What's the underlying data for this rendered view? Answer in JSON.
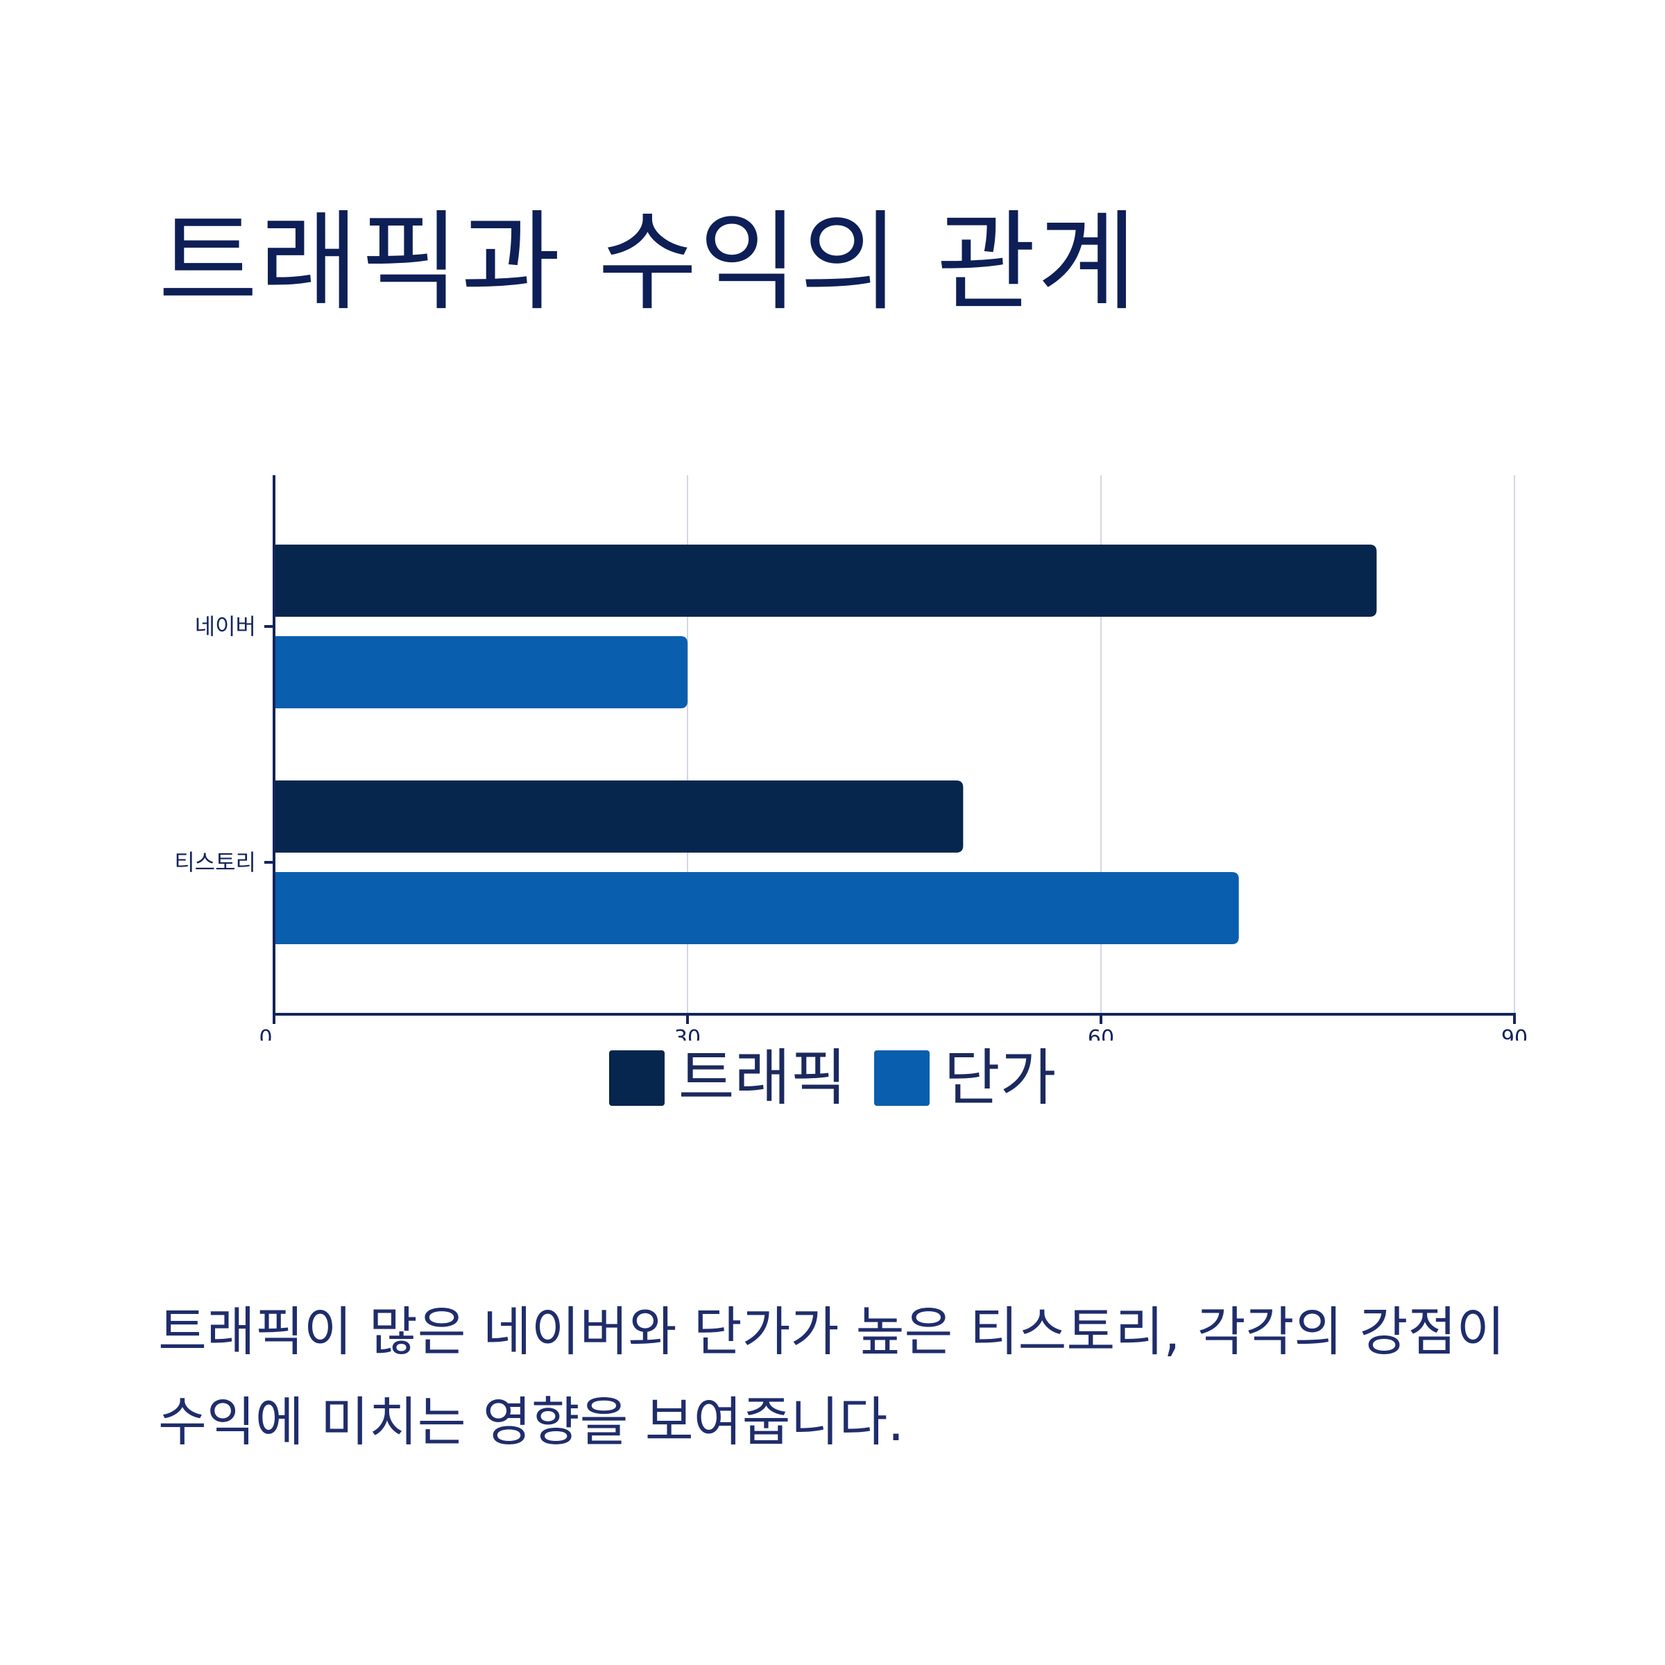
{
  "title": "트래픽과 수익의 관계",
  "caption": "트래픽이 많은 네이버와 단가가 높은 티스토리, 각각의 강점이 수익에 미치는 영향을 보여줍니다.",
  "colors": {
    "title": "#0d1f56",
    "axis": "#14245c",
    "grid": "#d3d6e6",
    "traffic": "#06264d",
    "price": "#0a5eae"
  },
  "chart_data": {
    "type": "bar",
    "orientation": "horizontal",
    "categories": [
      "네이버",
      "티스토리"
    ],
    "series": [
      {
        "name": "트래픽",
        "values": [
          80,
          50
        ],
        "color": "#06264d"
      },
      {
        "name": "단가",
        "values": [
          30,
          70
        ],
        "color": "#0a5eae"
      }
    ],
    "xlim": [
      0,
      90
    ],
    "xticks": [
      0,
      30,
      60,
      90
    ],
    "xtick_labels": [
      "0",
      "30",
      "60",
      "90"
    ],
    "grid": "vertical",
    "legend_position": "bottom-center"
  }
}
